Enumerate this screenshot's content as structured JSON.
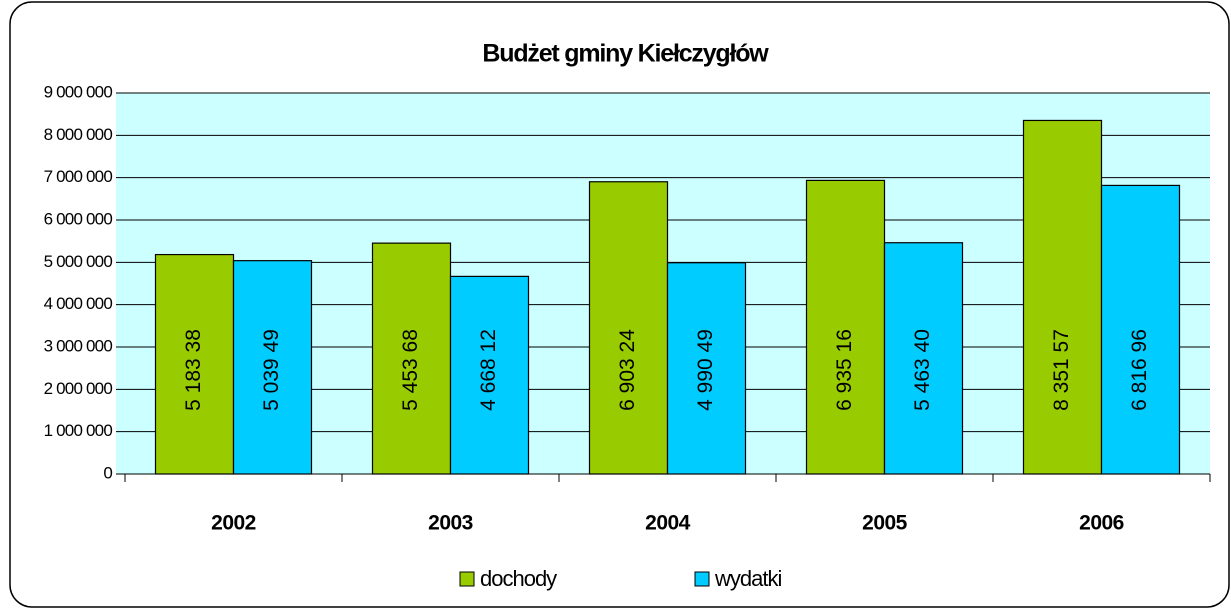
{
  "chart_data": {
    "type": "bar",
    "title": "Budżet gminy Kiełczygłów",
    "categories": [
      "2002",
      "2003",
      "2004",
      "2005",
      "2006"
    ],
    "series": [
      {
        "name": "dochody",
        "color": "#99cc00",
        "values": [
          5183380,
          5453680,
          6903240,
          6935160,
          8351570
        ],
        "value_labels": [
          "5 183 38",
          "5 453 68",
          "6 903 24",
          "6 935 16",
          "8 351 57"
        ]
      },
      {
        "name": "wydatki",
        "color": "#00ccff",
        "values": [
          5039490,
          4668120,
          4990490,
          5463400,
          6816960
        ],
        "value_labels": [
          "5 039 49",
          "4 668 12",
          "4 990 49",
          "5 463 40",
          "6 816 96"
        ]
      }
    ],
    "ylim": [
      0,
      9000000
    ],
    "yticks": [
      {
        "value": 0,
        "label": "0"
      },
      {
        "value": 1000000,
        "label": "1 000 000"
      },
      {
        "value": 2000000,
        "label": "2 000 000"
      },
      {
        "value": 3000000,
        "label": "3 000 000"
      },
      {
        "value": 4000000,
        "label": "4 000 000"
      },
      {
        "value": 5000000,
        "label": "5 000 000"
      },
      {
        "value": 6000000,
        "label": "6 000 000"
      },
      {
        "value": 7000000,
        "label": "7 000 000"
      },
      {
        "value": 8000000,
        "label": "8 000 000"
      },
      {
        "value": 9000000,
        "label": "9 000 000"
      }
    ],
    "grid": true,
    "legend": "bottom"
  }
}
